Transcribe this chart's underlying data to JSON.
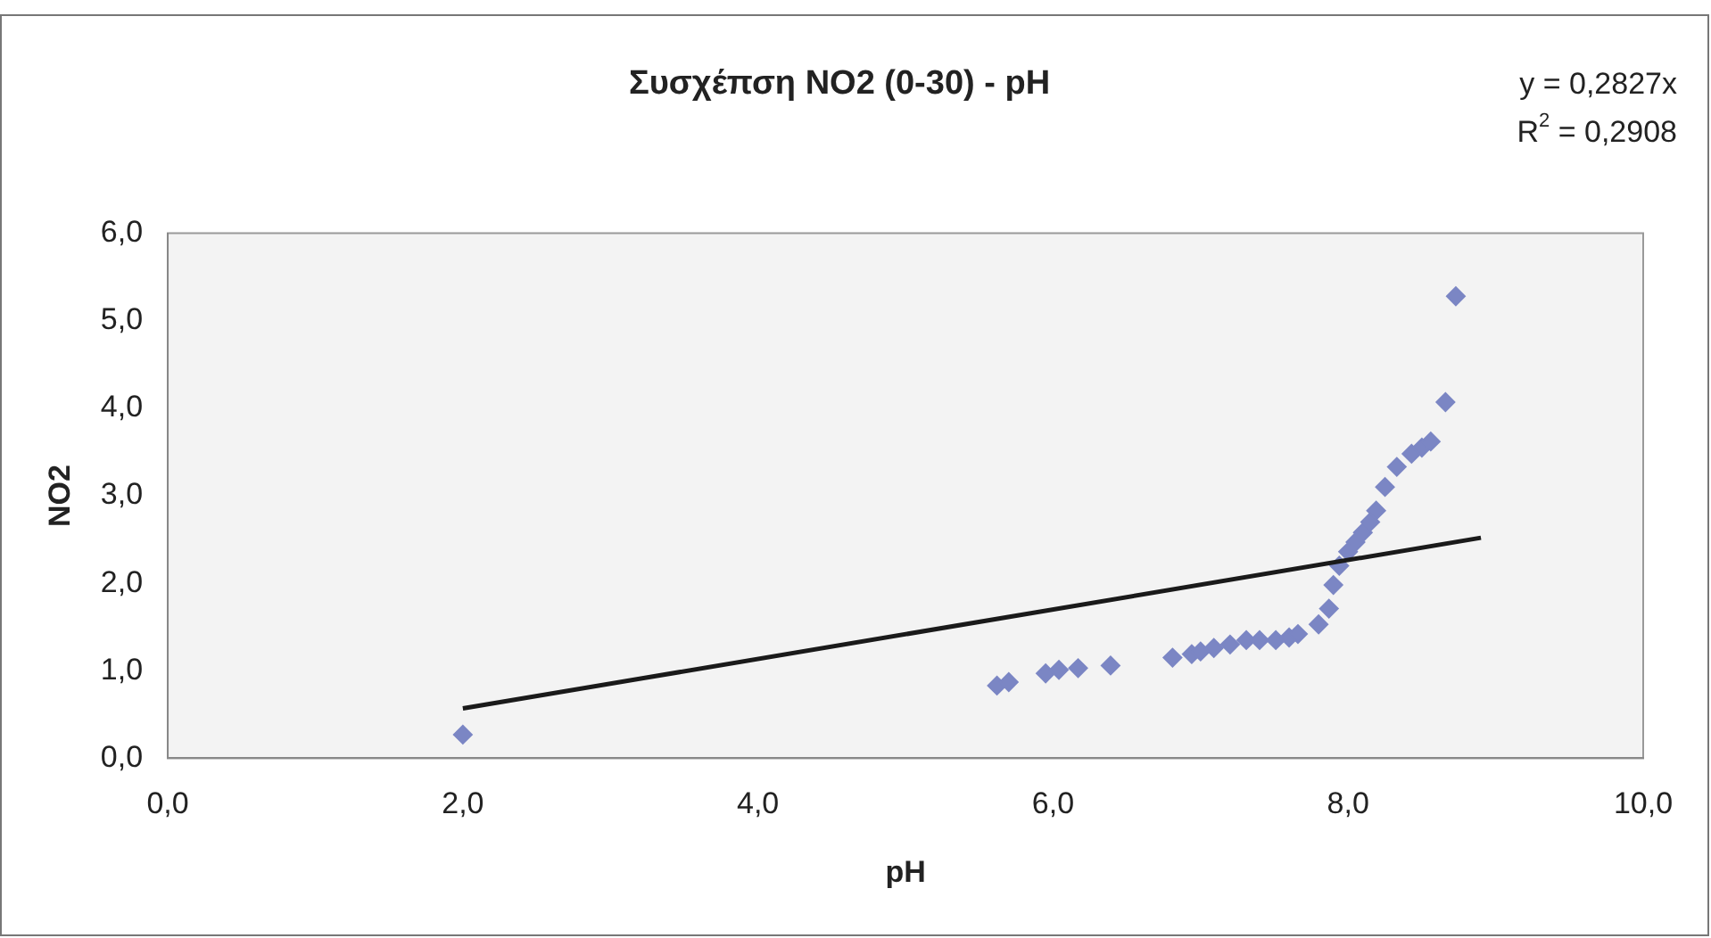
{
  "chart_data": {
    "type": "scatter",
    "title": "Συσχέπση NO2 (0-30) - pH",
    "xlabel": "pH",
    "ylabel": "NO2",
    "xlim": [
      0,
      10
    ],
    "xticks": [
      {
        "value": 0,
        "label": "0,0"
      },
      {
        "value": 2,
        "label": "2,0"
      },
      {
        "value": 4,
        "label": "4,0"
      },
      {
        "value": 6,
        "label": "6,0"
      },
      {
        "value": 8,
        "label": "8,0"
      },
      {
        "value": 10,
        "label": "10,0"
      }
    ],
    "ylim": [
      0,
      6
    ],
    "yticks": [
      {
        "value": 0,
        "label": "0,0"
      },
      {
        "value": 1,
        "label": "1,0"
      },
      {
        "value": 2,
        "label": "2,0"
      },
      {
        "value": 3,
        "label": "3,0"
      },
      {
        "value": 4,
        "label": "4,0"
      },
      {
        "value": 5,
        "label": "5,0"
      },
      {
        "value": 6,
        "label": "6,0"
      }
    ],
    "grid": false,
    "legend": false,
    "marker": "diamond",
    "annotations": [
      "y = 0,2827x",
      "R$^{2}$ = 0,2908"
    ],
    "series": [
      {
        "type": "scatter",
        "color": "#7b86c4",
        "x": [
          2.0,
          5.62,
          5.7,
          5.95,
          6.04,
          6.17,
          6.39,
          6.81,
          6.94,
          7.0,
          7.09,
          7.2,
          7.31,
          7.4,
          7.51,
          7.6,
          7.66,
          7.8,
          7.87,
          7.9,
          7.94,
          8.0,
          8.05,
          8.1,
          8.15,
          8.19,
          8.25,
          8.33,
          8.43,
          8.5,
          8.56,
          8.66,
          8.73
        ],
        "values": [
          0.27,
          0.83,
          0.87,
          0.97,
          1.01,
          1.03,
          1.06,
          1.15,
          1.19,
          1.22,
          1.26,
          1.3,
          1.35,
          1.35,
          1.35,
          1.38,
          1.42,
          1.53,
          1.71,
          1.98,
          2.2,
          2.36,
          2.47,
          2.58,
          2.7,
          2.83,
          3.1,
          3.33,
          3.48,
          3.55,
          3.62,
          4.07,
          5.28
        ]
      },
      {
        "type": "line",
        "color": "#1a1a1a",
        "marker": "none",
        "x": [
          2.0,
          8.9
        ],
        "values": [
          0.57,
          2.52
        ]
      }
    ]
  }
}
